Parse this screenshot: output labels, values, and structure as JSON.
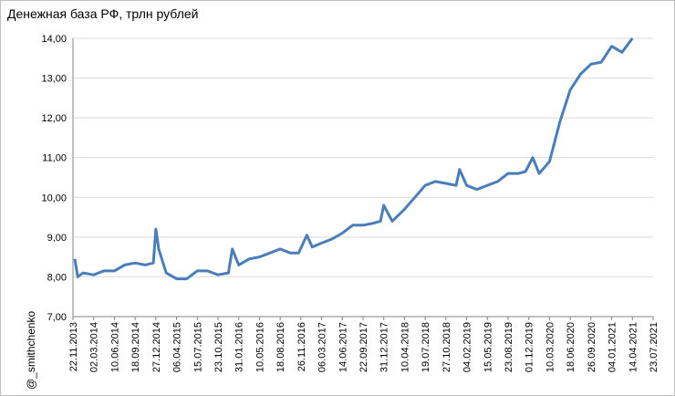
{
  "chart_data": {
    "type": "line",
    "title": "Денежная база РФ, трлн рублей",
    "watermark": "@_smithchenko",
    "x": [
      "01.12.2013",
      "15.12.2013",
      "10.01.2014",
      "02.03.2014",
      "20.04.2014",
      "10.06.2014",
      "29.07.2014",
      "18.09.2014",
      "06.11.2014",
      "15.12.2014",
      "27.12.2014",
      "10.01.2015",
      "15.02.2015",
      "06.04.2015",
      "25.05.2015",
      "15.07.2015",
      "02.09.2015",
      "23.10.2015",
      "12.12.2015",
      "31.12.2015",
      "31.01.2016",
      "21.03.2016",
      "10.05.2016",
      "29.06.2016",
      "18.08.2016",
      "07.10.2016",
      "15.11.2016",
      "25.12.2016",
      "20.01.2017",
      "06.03.2017",
      "25.04.2017",
      "14.06.2017",
      "03.08.2017",
      "22.09.2017",
      "11.11.2017",
      "15.12.2017",
      "31.12.2017",
      "10.02.2018",
      "10.04.2018",
      "30.05.2018",
      "19.07.2018",
      "06.09.2018",
      "27.10.2018",
      "15.12.2018",
      "01.01.2019",
      "04.02.2019",
      "25.03.2019",
      "15.05.2019",
      "04.07.2019",
      "23.08.2019",
      "12.10.2019",
      "15.11.2019",
      "20.12.2019",
      "20.01.2020",
      "10.03.2020",
      "29.04.2020",
      "18.06.2020",
      "07.08.2020",
      "26.09.2020",
      "15.11.2020",
      "04.01.2021",
      "23.02.2021",
      "14.04.2021"
    ],
    "series": [
      {
        "name": "Денежная база",
        "color": "#4a7ebb",
        "values": [
          8.45,
          8.0,
          8.1,
          8.05,
          8.15,
          8.15,
          8.3,
          8.35,
          8.3,
          8.35,
          9.2,
          8.7,
          8.1,
          7.95,
          7.95,
          8.15,
          8.15,
          8.05,
          8.1,
          8.7,
          8.3,
          8.45,
          8.5,
          8.6,
          8.7,
          8.6,
          8.6,
          9.05,
          8.75,
          8.85,
          8.95,
          9.1,
          9.3,
          9.3,
          9.35,
          9.4,
          9.8,
          9.4,
          9.7,
          10.0,
          10.3,
          10.4,
          10.35,
          10.3,
          10.7,
          10.3,
          10.2,
          10.3,
          10.4,
          10.6,
          10.6,
          10.65,
          11.0,
          10.6,
          10.9,
          11.9,
          12.7,
          13.1,
          13.35,
          13.4,
          13.8,
          13.65,
          14.0
        ]
      }
    ],
    "xlim": [
      "22.11.2013",
      "23.07.2021"
    ],
    "xticks": [
      "22.11.2013",
      "02.03.2014",
      "10.06.2014",
      "18.09.2014",
      "27.12.2014",
      "06.04.2015",
      "15.07.2015",
      "23.10.2015",
      "31.01.2016",
      "10.05.2016",
      "18.08.2016",
      "26.11.2016",
      "06.03.2017",
      "14.06.2017",
      "22.09.2017",
      "31.12.2017",
      "10.04.2018",
      "19.07.2018",
      "27.10.2018",
      "04.02.2019",
      "15.05.2019",
      "23.08.2019",
      "01.12.2019",
      "10.03.2020",
      "18.06.2020",
      "26.09.2020",
      "04.01.2021",
      "14.04.2021",
      "23.07.2021"
    ],
    "ylim": [
      7,
      14
    ],
    "yticks": [
      {
        "value": 7,
        "label": "7,00"
      },
      {
        "value": 8,
        "label": "8,00"
      },
      {
        "value": 9,
        "label": "9,00"
      },
      {
        "value": 10,
        "label": "10,00"
      },
      {
        "value": 11,
        "label": "11,00"
      },
      {
        "value": 12,
        "label": "12,00"
      },
      {
        "value": 13,
        "label": "13,00"
      },
      {
        "value": 14,
        "label": "14,00"
      }
    ],
    "grid": true
  }
}
